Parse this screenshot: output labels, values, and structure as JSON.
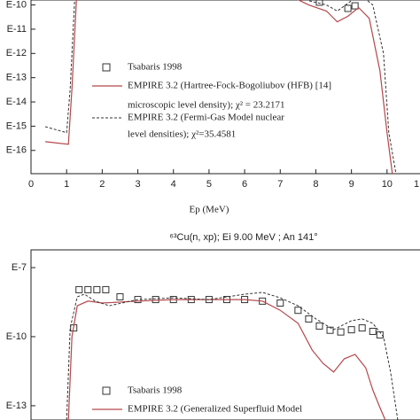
{
  "chart_data": [
    {
      "type": "line",
      "x_label": "Ep (MeV)",
      "log_y": true,
      "xlim": [
        0,
        11
      ],
      "xticks": [
        0,
        1,
        2,
        3,
        4,
        5,
        6,
        7,
        8,
        9,
        10,
        {
          "value": 11,
          "label": "1"
        }
      ],
      "ylim": [
        1.1e-17,
        1.6e-10
      ],
      "yticks": [
        {
          "value": 1e-10,
          "label": "E-10"
        },
        {
          "value": 1e-11,
          "label": "E-11"
        },
        {
          "value": 1e-12,
          "label": "E-12"
        },
        {
          "value": 1e-13,
          "label": "E-13"
        },
        {
          "value": 1e-14,
          "label": "E-14"
        },
        {
          "value": 1e-15,
          "label": "E-15"
        },
        {
          "value": 1e-16,
          "label": "E-16"
        }
      ],
      "series": [
        {
          "name": "Tsabaris 1998",
          "style": "markers",
          "color": "#333333",
          "x": [
            8.1,
            8.9,
            9.1
          ],
          "values": [
            1.3e-10,
            7.2e-11,
            9.2e-11
          ]
        },
        {
          "name": "EMPIRE 3.2 (Hartree-Fock-Bogoliubov (HFB) [14]",
          "name_line2": "microscopic level density); χ² = 23.2171",
          "style": "solid",
          "color": "#b5474b",
          "x": [
            0.4,
            1.05,
            1.15,
            1.3,
            7.3,
            7.8,
            8.3,
            8.6,
            8.9,
            9.2,
            9.5,
            9.8,
            10.0,
            10.15
          ],
          "values": [
            2.3e-16,
            1.8e-16,
            3.5e-14,
            8e-10,
            2.3e-10,
            1e-10,
            5.6e-11,
            2e-11,
            3.4e-11,
            7.8e-11,
            2.8e-11,
            1.9e-13,
            5.4e-16,
            1.1e-17
          ]
        },
        {
          "name": "EMPIRE 3.2 (Fermi-Gas Model nuclear",
          "name_line2": "level densities); χ²=35.4581",
          "style": "dashed",
          "color": "#333333",
          "x": [
            0.4,
            1.0,
            1.1,
            1.25,
            7.3,
            7.8,
            8.3,
            8.6,
            9.0,
            9.3,
            9.6,
            9.9,
            10.05,
            10.25
          ],
          "values": [
            9.5e-16,
            5.4e-16,
            3.5e-14,
            8e-10,
            3e-10,
            1.5e-10,
            1e-10,
            5.6e-11,
            1.5e-10,
            2.3e-10,
            1e-10,
            1e-12,
            5.4e-16,
            1.1e-17
          ]
        }
      ]
    },
    {
      "type": "line",
      "title": "⁶³Cu(n, xp); Ei 9.00 MeV ; An 141°",
      "log_y": true,
      "xlim": [
        0,
        11
      ],
      "ylim": [
        2.4e-14,
        5.9e-07
      ],
      "yticks": [
        {
          "value": 1e-07,
          "label": "E-7"
        },
        {
          "value": 1e-10,
          "label": "E-10"
        },
        {
          "value": 1e-13,
          "label": "E-13"
        }
      ],
      "series": [
        {
          "name": "Tsabaris 1998",
          "style": "markers",
          "color": "#333333",
          "x": [
            1.2,
            1.35,
            1.6,
            1.85,
            2.1,
            2.5,
            3,
            3.5,
            4,
            4.5,
            5,
            5.5,
            6,
            6.5,
            7,
            7.5,
            7.8,
            8.1,
            8.4,
            8.7,
            9.0,
            9.3,
            9.6,
            9.8
          ],
          "values": [
            2.4e-10,
            1.1e-08,
            1.1e-08,
            1.1e-08,
            1.1e-08,
            5.4e-09,
            4.1e-09,
            4.1e-09,
            4.1e-09,
            4.1e-09,
            4.1e-09,
            4.1e-09,
            4.1e-09,
            3.5e-09,
            2.9e-09,
            1.4e-09,
            5.9e-10,
            2.9e-10,
            1.9e-10,
            1.6e-10,
            2e-10,
            2.4e-10,
            1.7e-10,
            1.2e-10
          ]
        },
        {
          "name": "EMPIRE 3.2 (Generalized Superfluid Model",
          "style": "solid",
          "color": "#b5474b",
          "x": [
            1.05,
            1.15,
            1.3,
            1.6,
            2,
            3,
            4,
            5,
            6,
            6.5,
            7,
            7.5,
            7.9,
            8.2,
            8.5,
            8.8,
            9.1,
            9.4,
            9.6,
            9.8,
            9.95
          ],
          "values": [
            2.4e-14,
            1e-10,
            2.2e-09,
            3.5e-09,
            2.9e-09,
            3.5e-09,
            4.1e-09,
            4.1e-09,
            4.1e-09,
            3.5e-09,
            1.4e-09,
            3.8e-10,
            2.6e-11,
            7e-12,
            2.9e-12,
            1.1e-11,
            1.7e-11,
            4.5e-12,
            4.9e-13,
            8.3e-14,
            2.4e-14
          ]
        },
        {
          "style": "dashed",
          "color": "#333333",
          "x": [
            1.0,
            1.1,
            1.3,
            1.5,
            1.8,
            2.2,
            3,
            4,
            5,
            6,
            6.5,
            7,
            7.5,
            8,
            8.5,
            9,
            9.3,
            9.6,
            9.9,
            10.1,
            10.3
          ],
          "values": [
            2.4e-14,
            2.4e-10,
            5.4e-09,
            7e-09,
            3.5e-09,
            2.2e-09,
            4.1e-09,
            4.9e-09,
            4.1e-09,
            7e-09,
            8.4e-09,
            4.9e-09,
            2.2e-09,
            5.9e-10,
            2e-10,
            4.9e-10,
            5.9e-10,
            3.8e-10,
            1e-10,
            2.9e-12,
            2.4e-14
          ]
        }
      ]
    }
  ]
}
